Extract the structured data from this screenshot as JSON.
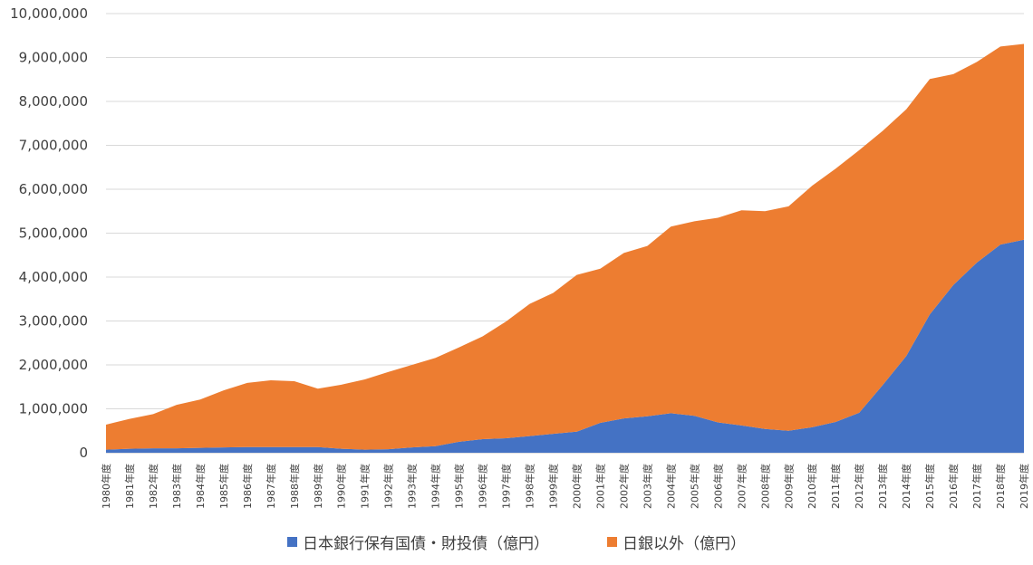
{
  "chart_data": {
    "type": "area",
    "stacked": true,
    "x": [
      "1980年度",
      "1981年度",
      "1982年度",
      "1983年度",
      "1984年度",
      "1985年度",
      "1986年度",
      "1987年度",
      "1988年度",
      "1989年度",
      "1990年度",
      "1991年度",
      "1992年度",
      "1993年度",
      "1994年度",
      "1995年度",
      "1996年度",
      "1997年度",
      "1998年度",
      "1999年度",
      "2000年度",
      "2001年度",
      "2002年度",
      "2003年度",
      "2004年度",
      "2005年度",
      "2006年度",
      "2007年度",
      "2008年度",
      "2009年度",
      "2010年度",
      "2011年度",
      "2012年度",
      "2013年度",
      "2014年度",
      "2015年度",
      "2016年度",
      "2017年度",
      "2018年度",
      "2019年度"
    ],
    "series": [
      {
        "name": "日本銀行保有国債・財投債（億円）",
        "color": "#4472C4",
        "values": [
          70000,
          90000,
          100000,
          100000,
          110000,
          120000,
          130000,
          130000,
          130000,
          130000,
          90000,
          70000,
          80000,
          120000,
          150000,
          250000,
          310000,
          330000,
          380000,
          430000,
          480000,
          680000,
          780000,
          830000,
          900000,
          840000,
          690000,
          620000,
          540000,
          500000,
          580000,
          700000,
          910000,
          1540000,
          2200000,
          3150000,
          3820000,
          4330000,
          4740000,
          4850000
        ]
      },
      {
        "name": "日銀以外（億円）",
        "color": "#ED7D31",
        "values": [
          570000,
          680000,
          780000,
          990000,
          1100000,
          1300000,
          1460000,
          1520000,
          1500000,
          1330000,
          1460000,
          1600000,
          1760000,
          1880000,
          2010000,
          2150000,
          2340000,
          2660000,
          3010000,
          3210000,
          3570000,
          3510000,
          3770000,
          3880000,
          4250000,
          4430000,
          4660000,
          4900000,
          4960000,
          5110000,
          5500000,
          5770000,
          5980000,
          5790000,
          5620000,
          5360000,
          4800000,
          4570000,
          4510000,
          4460000
        ]
      }
    ],
    "ylim": [
      0,
      10000000
    ],
    "yticks": [
      "0",
      "1,000,000",
      "2,000,000",
      "3,000,000",
      "4,000,000",
      "5,000,000",
      "6,000,000",
      "7,000,000",
      "8,000,000",
      "9,000,000",
      "10,000,000"
    ],
    "grid": true,
    "legend_position": "bottom",
    "title": "",
    "xlabel": "",
    "ylabel": ""
  }
}
